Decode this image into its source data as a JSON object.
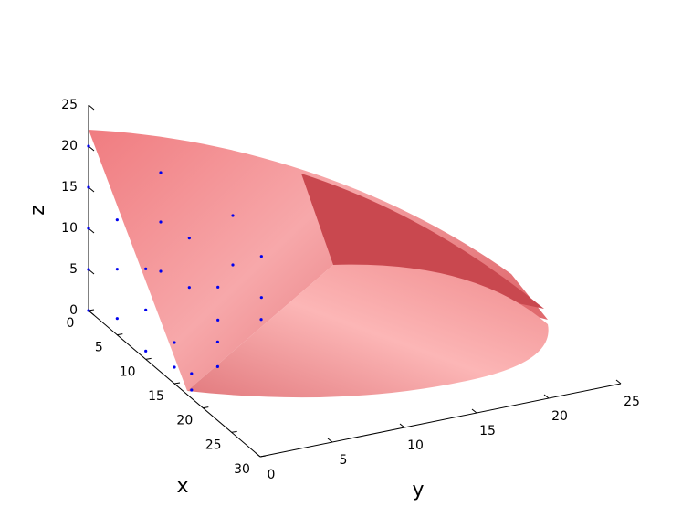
{
  "chart_data": {
    "type": "scatter3d",
    "xlabel": "x",
    "ylabel": "y",
    "zlabel": "z",
    "xlim": [
      0,
      30
    ],
    "ylim": [
      0,
      25
    ],
    "zlim": [
      0,
      25
    ],
    "xticks": [
      0,
      5,
      10,
      15,
      20,
      25,
      30
    ],
    "yticks": [
      0,
      5,
      10,
      15,
      20,
      25
    ],
    "zticks": [
      0,
      5,
      10,
      15,
      20,
      25
    ],
    "color": "#0000ee",
    "x": [
      0,
      0,
      0,
      0,
      0,
      0,
      0,
      0,
      0,
      0,
      5,
      5,
      5,
      5,
      5,
      5,
      5,
      10,
      10,
      10,
      10,
      10,
      10,
      15,
      15,
      15,
      15,
      18,
      18
    ],
    "y": [
      0,
      0,
      0,
      0,
      0,
      5,
      5,
      5,
      10,
      10,
      0,
      0,
      0,
      5,
      5,
      10,
      10,
      0,
      0,
      0,
      5,
      5,
      8,
      0,
      0,
      3,
      3,
      0,
      0
    ],
    "z": [
      0,
      5,
      10,
      15,
      20,
      3,
      9,
      15,
      2,
      8,
      2,
      8,
      14,
      4,
      10,
      1,
      6,
      1,
      6,
      11,
      3,
      7,
      2,
      2,
      5,
      1,
      4,
      1,
      3
    ]
  }
}
